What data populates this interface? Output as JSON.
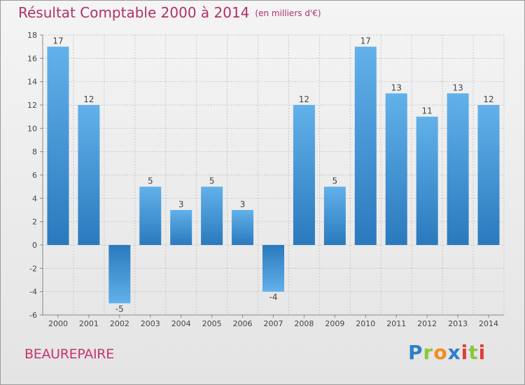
{
  "title": "Résultat Comptable 2000 à 2014",
  "unit_label": "(en milliers d'€)",
  "city": "BEAUREPAIRE",
  "logo": {
    "p": "P",
    "r": "r",
    "o": "o",
    "x": "x",
    "i1": "i",
    "t": "t",
    "i2": "i"
  },
  "colors": {
    "title": "#b0306a",
    "bar_top": "#62b1ea",
    "bar_bottom": "#2a79bd",
    "grid": "#c8c8c8",
    "text": "#444444"
  },
  "chart_data": {
    "type": "bar",
    "title": "Résultat Comptable 2000 à 2014",
    "xlabel": "",
    "ylabel": "(en milliers d'€)",
    "categories": [
      "2000",
      "2001",
      "2002",
      "2003",
      "2004",
      "2005",
      "2006",
      "2007",
      "2008",
      "2009",
      "2010",
      "2011",
      "2012",
      "2013",
      "2014"
    ],
    "values": [
      17,
      12,
      -5,
      5,
      3,
      5,
      3,
      -4,
      12,
      5,
      17,
      13,
      11,
      13,
      12
    ],
    "ylim": [
      -6,
      18
    ],
    "yticks": [
      -6,
      -4,
      -2,
      0,
      2,
      4,
      6,
      8,
      10,
      12,
      14,
      16,
      18
    ],
    "grid": true
  }
}
